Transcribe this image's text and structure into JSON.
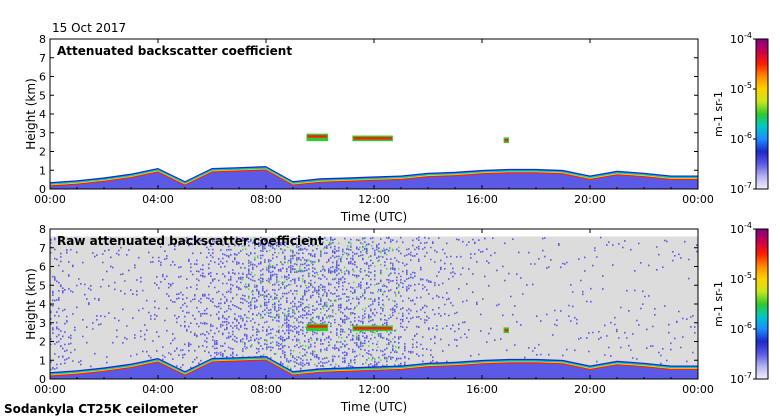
{
  "date_label": "15 Oct 2017",
  "instrument_label": "Sodankyla CT25K ceilometer",
  "colors": {
    "background_no_signal": "#dcdcdc",
    "colormap": [
      "#f0f0ff",
      "#b4b4f0",
      "#5a5ae6",
      "#1e28c8",
      "#1e8cff",
      "#00c8c8",
      "#32c832",
      "#c8e61e",
      "#ffd200",
      "#ff8c00",
      "#ff1e00",
      "#c80050",
      "#800080"
    ]
  },
  "chart_data": [
    {
      "type": "heatmap",
      "title": "Attenuated backscatter coefficient",
      "xlabel": "Time (UTC)",
      "ylabel": "Height (km)",
      "x_ticks": [
        "00:00",
        "04:00",
        "08:00",
        "12:00",
        "16:00",
        "20:00",
        "00:00"
      ],
      "x_range_hours": [
        0,
        24
      ],
      "y_ticks": [
        0,
        1,
        2,
        3,
        4,
        5,
        6,
        7,
        8
      ],
      "ylim_km": [
        0,
        8
      ],
      "colorbar": {
        "scale": "log",
        "range": [
          1e-07,
          0.0001
        ],
        "tick_mantissa": "10",
        "tick_exponents": [
          "-7",
          "-6",
          "-5",
          "-4"
        ],
        "unit_label": "m-1 sr-1"
      },
      "features": {
        "surface_layer": {
          "hours": [
            0,
            1,
            2,
            3,
            4,
            5,
            6,
            7,
            8,
            9,
            10,
            11,
            12,
            13,
            14,
            15,
            16,
            17,
            18,
            19,
            20,
            21,
            22,
            23,
            24
          ],
          "top_km": [
            0.25,
            0.35,
            0.5,
            0.7,
            1.0,
            0.3,
            1.0,
            1.05,
            1.1,
            0.3,
            0.45,
            0.5,
            0.55,
            0.6,
            0.75,
            0.8,
            0.9,
            0.95,
            0.95,
            0.9,
            0.6,
            0.85,
            0.75,
            0.6,
            0.6
          ]
        },
        "elevated_clouds": [
          {
            "start_h": 9.5,
            "end_h": 10.3,
            "base_km": 2.55,
            "top_km": 2.95
          },
          {
            "start_h": 11.2,
            "end_h": 12.7,
            "base_km": 2.55,
            "top_km": 2.85
          },
          {
            "start_h": 16.8,
            "end_h": 17.0,
            "base_km": 2.45,
            "top_km": 2.75
          }
        ]
      }
    },
    {
      "type": "heatmap",
      "title": "Raw attenuated backscatter coefficient",
      "xlabel": "Time (UTC)",
      "ylabel": "Height (km)",
      "x_ticks": [
        "00:00",
        "04:00",
        "08:00",
        "12:00",
        "16:00",
        "20:00",
        "00:00"
      ],
      "x_range_hours": [
        0,
        24
      ],
      "y_ticks": [
        0,
        1,
        2,
        3,
        4,
        5,
        6,
        7,
        8
      ],
      "ylim_km": [
        0,
        8
      ],
      "data_top_km": 7.6,
      "colorbar": {
        "scale": "log",
        "range": [
          1e-07,
          0.0001
        ],
        "tick_mantissa": "10",
        "tick_exponents": [
          "-7",
          "-6",
          "-5",
          "-4"
        ],
        "unit_label": "m-1 sr-1"
      },
      "features": {
        "noise_level_by_hour": [
          0.55,
          0.15,
          0.15,
          0.15,
          0.2,
          0.35,
          0.6,
          0.75,
          0.9,
          0.95,
          0.85,
          0.8,
          0.7,
          0.55,
          0.35,
          0.2,
          0.12,
          0.1,
          0.1,
          0.1,
          0.1,
          0.1,
          0.1,
          0.1,
          0.1
        ]
      }
    }
  ]
}
